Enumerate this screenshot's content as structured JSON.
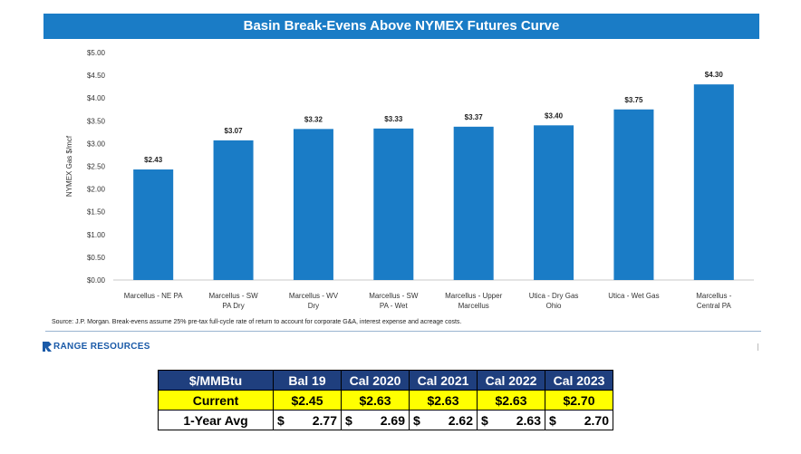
{
  "chart_data": {
    "type": "bar",
    "title": "Basin Break-Evens Above NYMEX Futures Curve",
    "ylabel": "NYMEX Gas $/mcf",
    "ylim": [
      0,
      5
    ],
    "yticks": [
      "$0.00",
      "$0.50",
      "$1.00",
      "$1.50",
      "$2.00",
      "$2.50",
      "$3.00",
      "$3.50",
      "$4.00",
      "$4.50",
      "$5.00"
    ],
    "categories": [
      [
        "Marcellus - NE PA"
      ],
      [
        "Marcellus - SW",
        "PA Dry"
      ],
      [
        "Marcellus - WV",
        "Dry"
      ],
      [
        "Marcellus - SW",
        "PA - Wet"
      ],
      [
        "Marcellus - Upper",
        "Marcellus"
      ],
      [
        "Utica - Dry Gas",
        "Ohio"
      ],
      [
        "Utica - Wet Gas"
      ],
      [
        "Marcellus -",
        "Central PA"
      ]
    ],
    "values": [
      2.43,
      3.07,
      3.32,
      3.33,
      3.37,
      3.4,
      3.75,
      4.3
    ],
    "data_labels": [
      "$2.43",
      "$3.07",
      "$3.32",
      "$3.33",
      "$3.37",
      "$3.40",
      "$3.75",
      "$4.30"
    ],
    "bar_color": "#1a7cc6",
    "grid": false,
    "source": "Source: J.P. Morgan. Break-evens assume 25% pre-tax full-cycle rate of return to account for corporate G&A, interest expense and acreage costs."
  },
  "logo": {
    "text": "RANGE RESOURCES"
  },
  "price_table": {
    "header": [
      "$/MMBtu",
      "Bal 19",
      "Cal 2020",
      "Cal 2021",
      "Cal 2022",
      "Cal 2023"
    ],
    "current": {
      "label": "Current",
      "values": [
        "$2.45",
        "$2.63",
        "$2.63",
        "$2.63",
        "$2.70"
      ]
    },
    "avg": {
      "label": "1-Year Avg",
      "currency": "$",
      "values": [
        "2.77",
        "2.69",
        "2.62",
        "2.63",
        "2.70"
      ]
    }
  }
}
